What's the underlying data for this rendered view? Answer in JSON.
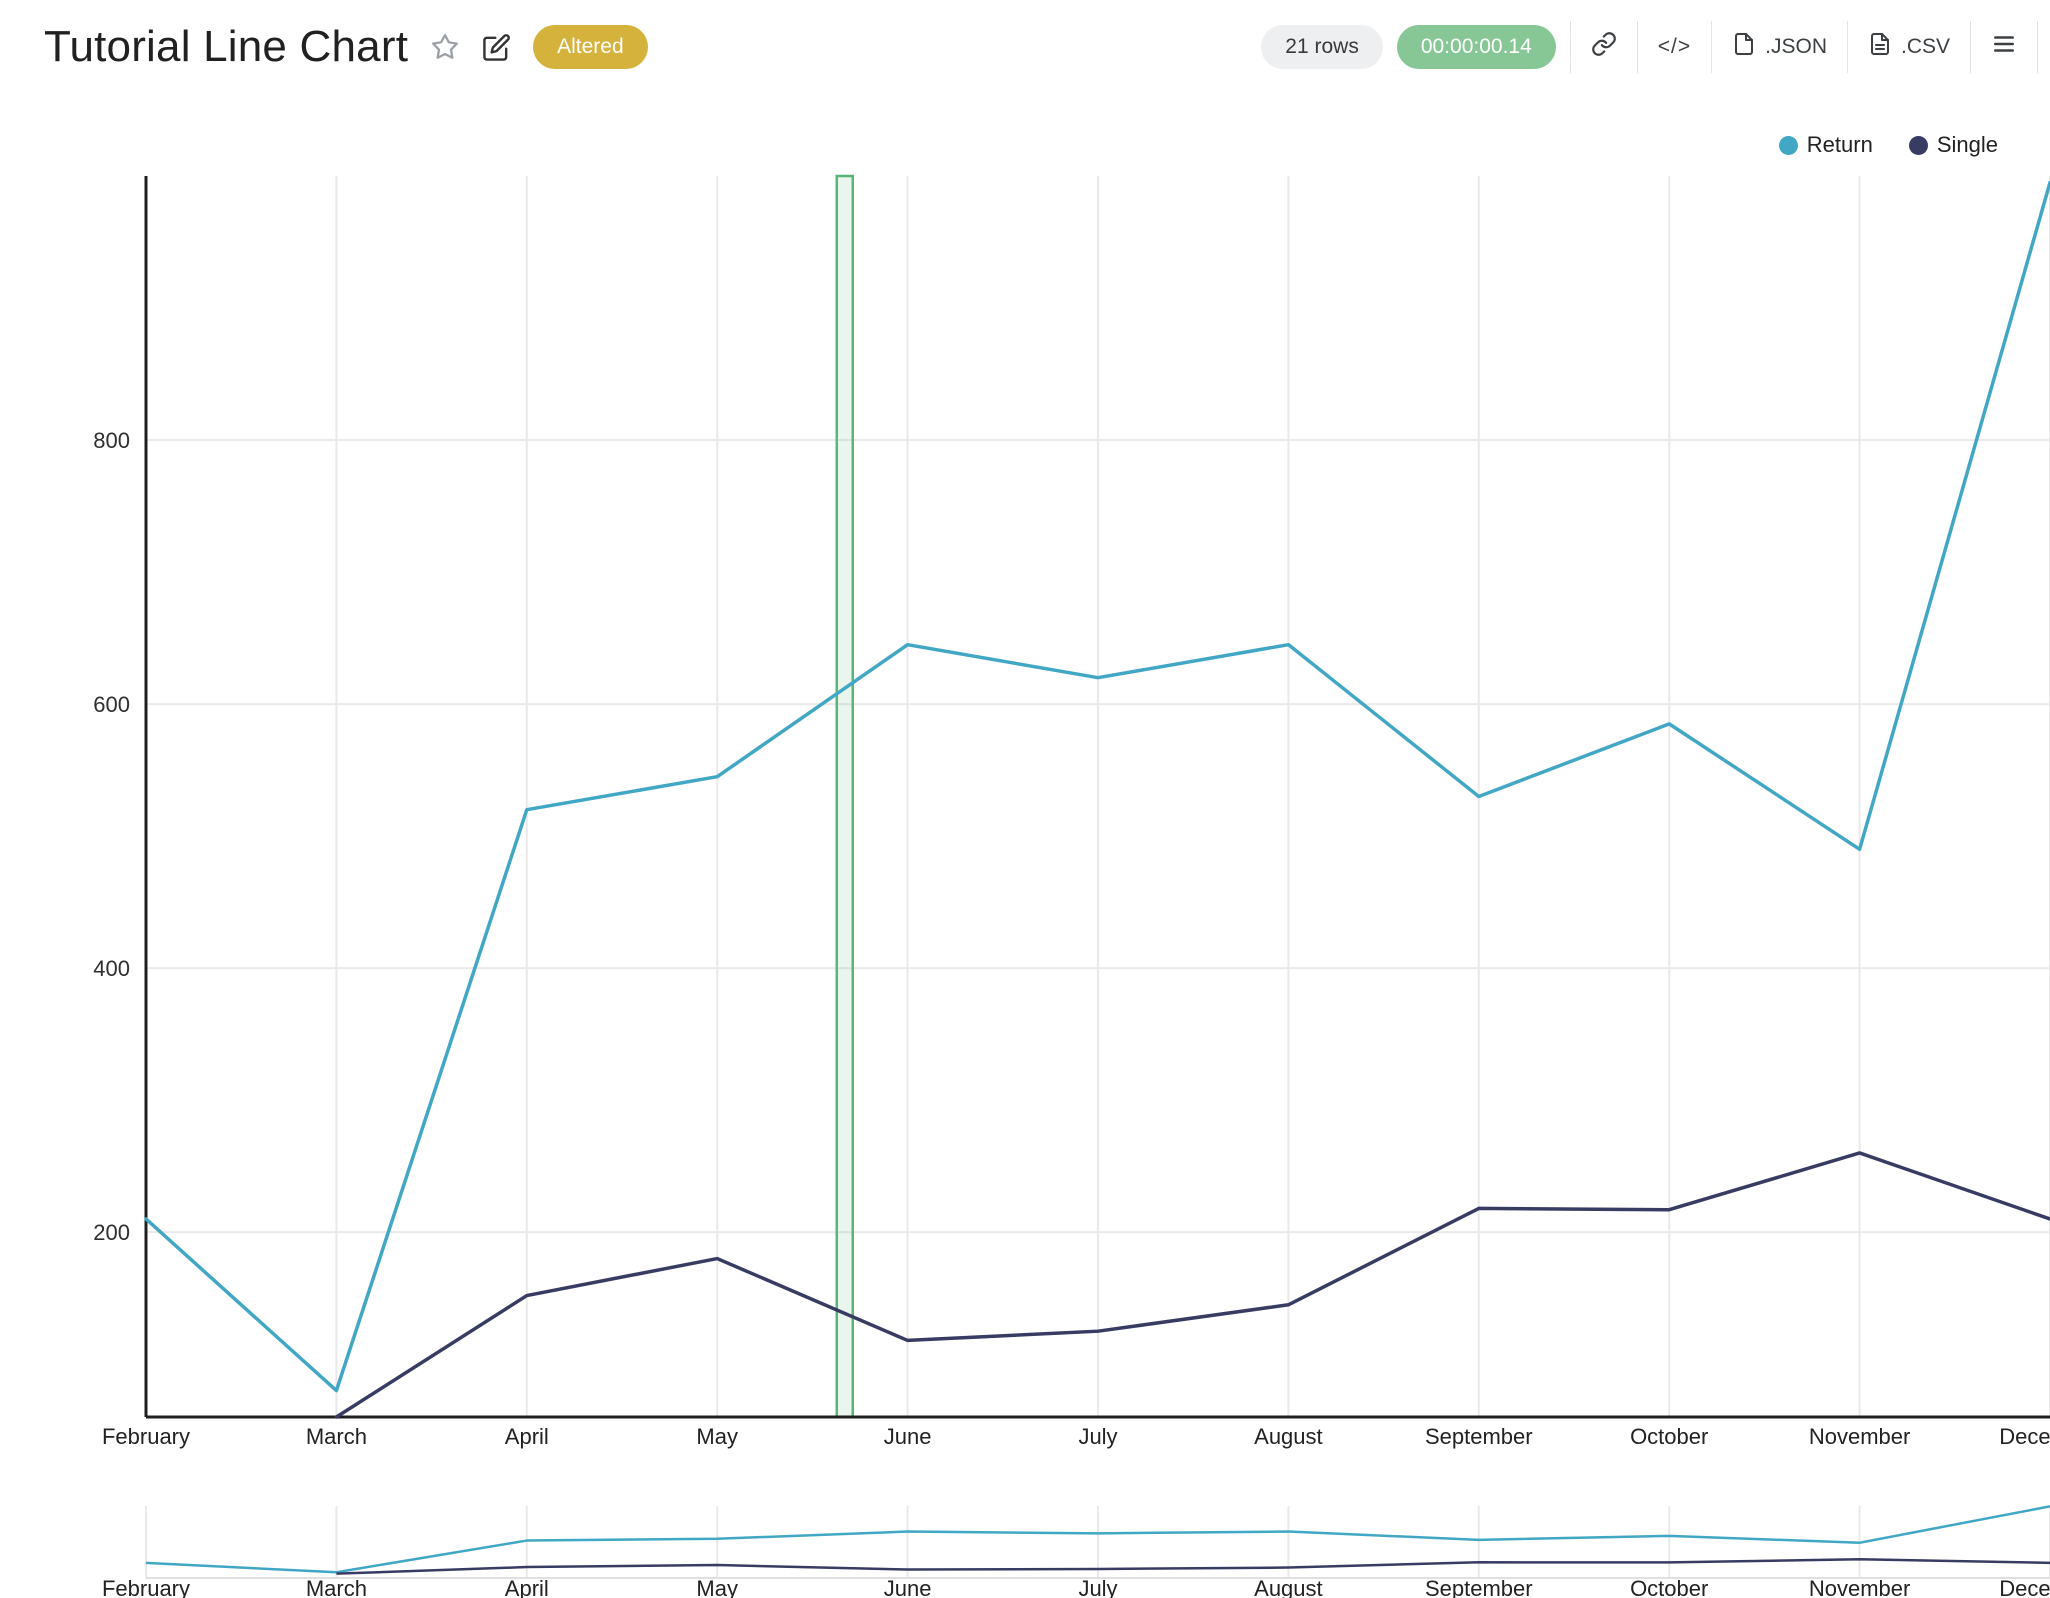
{
  "header": {
    "title": "Tutorial Line Chart",
    "star_icon": "star-outline",
    "edit_icon": "edit-pencil",
    "altered_badge": "Altered",
    "rows_badge": "21 rows",
    "timer_badge": "00:00:00.14",
    "toolbar": {
      "link_icon": "link",
      "code_label": "</>",
      "json_label": ".JSON",
      "csv_label": ".CSV",
      "menu_icon": "hamburger-menu"
    }
  },
  "colors": {
    "return_series": "#42a7c5",
    "single_series": "#383c63",
    "altered_badge_bg": "#d5b23c",
    "timer_badge_bg": "#87c795",
    "rows_badge_bg": "#edeff1",
    "selection_band": "#57b576",
    "grid": "#e9e9e9",
    "axis": "#1f1f1f"
  },
  "chart_data": {
    "type": "line",
    "title": "Tutorial Line Chart",
    "x": [
      "February",
      "March",
      "April",
      "May",
      "June",
      "July",
      "August",
      "September",
      "October",
      "November",
      "December"
    ],
    "series": [
      {
        "name": "Return",
        "color": "#42a7c5",
        "values": [
          210,
          80,
          520,
          545,
          645,
          620,
          645,
          530,
          585,
          490,
          995
        ]
      },
      {
        "name": "Single",
        "color": "#383c63",
        "values": [
          null,
          60,
          152,
          180,
          118,
          125,
          145,
          218,
          217,
          260,
          210
        ]
      }
    ],
    "ylim": [
      60,
      1000
    ],
    "yticks": [
      200,
      400,
      600,
      800
    ],
    "grid": true,
    "legend_position": "top-right",
    "selection_band": {
      "between": [
        "May",
        "June"
      ],
      "fraction": 0.67
    },
    "mini_chart": {
      "ylim": [
        0,
        1000
      ]
    }
  }
}
